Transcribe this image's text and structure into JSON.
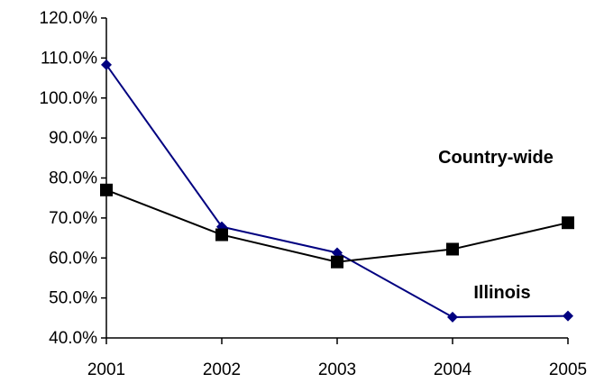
{
  "chart_data": {
    "type": "line",
    "x": [
      2001,
      2002,
      2003,
      2004,
      2005
    ],
    "xlim": [
      2001,
      2005
    ],
    "xticks": [
      2001,
      2002,
      2003,
      2004,
      2005
    ],
    "ylim": [
      40,
      120
    ],
    "yticks": [
      {
        "value": 40,
        "label": "40.0%"
      },
      {
        "value": 50,
        "label": "50.0%"
      },
      {
        "value": 60,
        "label": "60.0%"
      },
      {
        "value": 70,
        "label": "70.0%"
      },
      {
        "value": 80,
        "label": "80.0%"
      },
      {
        "value": 90,
        "label": "90.0%"
      },
      {
        "value": 100,
        "label": "100.0%"
      },
      {
        "value": 110,
        "label": "110.0%"
      },
      {
        "value": 120,
        "label": "120.0%"
      }
    ],
    "grid": false,
    "series": [
      {
        "name": "Illinois",
        "color": "#000080",
        "marker": "diamond",
        "values": [
          108.3,
          67.8,
          61.3,
          45.2,
          45.5
        ]
      },
      {
        "name": "Country-wide",
        "color": "#000000",
        "marker": "square",
        "values": [
          77.0,
          65.8,
          59.0,
          62.2,
          68.8
        ]
      }
    ]
  }
}
